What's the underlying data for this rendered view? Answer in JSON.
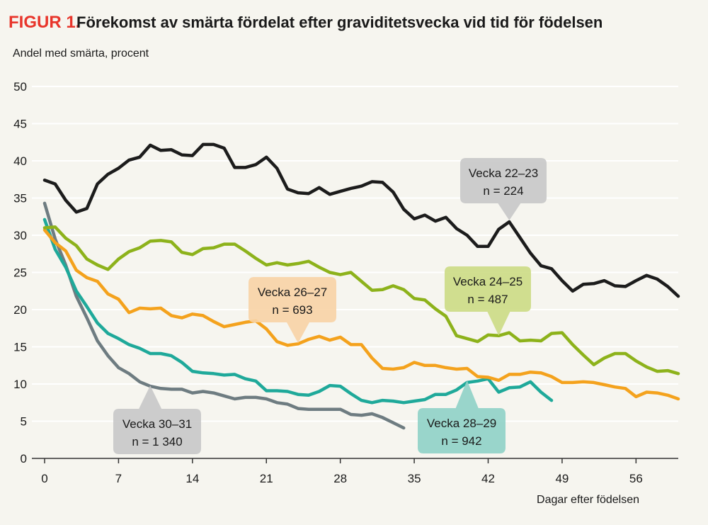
{
  "header": {
    "figure_label": "FIGUR 1.",
    "title": "Förekomst av smärta fördelat efter graviditetsvecka vid tid för födelsen"
  },
  "colors": {
    "background": "#f6f5ef",
    "grid": "#ffffff",
    "axis": "#333333",
    "figure_label": "#e8352b"
  },
  "chart_data": {
    "type": "line",
    "ylabel": "Andel med smärta, procent",
    "xlabel": "Dagar efter födelsen",
    "xlim": [
      0,
      60
    ],
    "ylim": [
      0,
      50
    ],
    "xticks": [
      0,
      7,
      14,
      21,
      28,
      35,
      42,
      49,
      56
    ],
    "yticks": [
      0,
      5,
      10,
      15,
      20,
      25,
      30,
      35,
      40,
      45,
      50
    ],
    "grid": "horizontal",
    "series": [
      {
        "name": "Vecka 22–23",
        "n_label": "n = 224",
        "color": "#1c1c1c",
        "callout_fill": "#c8c8c8",
        "callout_anchor": [
          44,
          32
        ],
        "x": [
          0,
          1,
          2,
          3,
          4,
          5,
          6,
          7,
          8,
          9,
          10,
          11,
          12,
          13,
          14,
          15,
          16,
          17,
          18,
          19,
          20,
          21,
          22,
          23,
          24,
          25,
          26,
          27,
          28,
          29,
          30,
          31,
          32,
          33,
          34,
          35,
          36,
          37,
          38,
          39,
          40,
          41,
          42,
          43,
          44,
          45,
          46,
          47,
          48,
          49,
          50,
          51,
          52,
          53,
          54,
          55,
          56,
          57,
          58,
          59,
          60
        ],
        "values": [
          37.4,
          36.9,
          34.7,
          33.1,
          33.6,
          36.9,
          38.2,
          39.0,
          40.1,
          40.5,
          42.1,
          41.4,
          41.5,
          40.8,
          40.7,
          42.2,
          42.2,
          41.7,
          39.1,
          39.1,
          39.5,
          40.5,
          39.0,
          36.2,
          35.7,
          35.6,
          36.4,
          35.5,
          35.9,
          36.3,
          36.6,
          37.2,
          37.1,
          35.8,
          33.5,
          32.2,
          32.7,
          31.9,
          32.4,
          30.9,
          30.0,
          28.5,
          28.5,
          30.8,
          31.8,
          29.7,
          27.6,
          25.9,
          25.5,
          23.9,
          22.5,
          23.4,
          23.5,
          23.9,
          23.2,
          23.1,
          23.9,
          24.6,
          24.1,
          23.1,
          21.8
        ]
      },
      {
        "name": "Vecka 24–25",
        "n_label": "n = 487",
        "color": "#8db21b",
        "callout_fill": "#ccdc84",
        "callout_anchor": [
          43,
          16.5
        ],
        "x": [
          0,
          1,
          2,
          3,
          4,
          5,
          6,
          7,
          8,
          9,
          10,
          11,
          12,
          13,
          14,
          15,
          16,
          17,
          18,
          19,
          20,
          21,
          22,
          23,
          24,
          25,
          26,
          27,
          28,
          29,
          30,
          31,
          32,
          33,
          34,
          35,
          36,
          37,
          38,
          39,
          40,
          41,
          42,
          43,
          44,
          45,
          46,
          47,
          48,
          49,
          50,
          51,
          52,
          53,
          54,
          55,
          56,
          57,
          58,
          59,
          60
        ],
        "values": [
          31.0,
          31.1,
          29.6,
          28.6,
          26.8,
          26.0,
          25.4,
          26.8,
          27.8,
          28.3,
          29.2,
          29.3,
          29.1,
          27.7,
          27.4,
          28.2,
          28.3,
          28.8,
          28.8,
          27.9,
          26.9,
          26.0,
          26.3,
          26.0,
          26.2,
          26.5,
          25.7,
          25.0,
          24.7,
          25.0,
          23.8,
          22.6,
          22.7,
          23.2,
          22.7,
          21.5,
          21.3,
          20.1,
          19.1,
          16.5,
          16.1,
          15.7,
          16.6,
          16.5,
          16.9,
          15.8,
          15.9,
          15.8,
          16.8,
          16.9,
          15.3,
          13.9,
          12.6,
          13.5,
          14.1,
          14.1,
          13.1,
          12.3,
          11.7,
          11.8,
          11.4
        ]
      },
      {
        "name": "Vecka 26–27",
        "n_label": "n = 693",
        "color": "#f4a21d",
        "callout_fill": "#f8d3a5",
        "callout_anchor": [
          24,
          15.5
        ],
        "x": [
          0,
          1,
          2,
          3,
          4,
          5,
          6,
          7,
          8,
          9,
          10,
          11,
          12,
          13,
          14,
          15,
          16,
          17,
          18,
          19,
          20,
          21,
          22,
          23,
          24,
          25,
          26,
          27,
          28,
          29,
          30,
          31,
          32,
          33,
          34,
          35,
          36,
          37,
          38,
          39,
          40,
          41,
          42,
          43,
          44,
          45,
          46,
          47,
          48,
          49,
          50,
          51,
          52,
          53,
          54,
          55,
          56,
          57,
          58,
          59,
          60
        ],
        "values": [
          30.7,
          29.0,
          27.9,
          25.3,
          24.3,
          23.8,
          22.1,
          21.4,
          19.6,
          20.2,
          20.1,
          20.2,
          19.2,
          18.9,
          19.4,
          19.2,
          18.4,
          17.7,
          18.0,
          18.3,
          18.5,
          17.4,
          15.7,
          15.2,
          15.4,
          16.0,
          16.4,
          15.9,
          16.3,
          15.3,
          15.3,
          13.5,
          12.1,
          12.0,
          12.2,
          12.9,
          12.5,
          12.5,
          12.2,
          12.0,
          12.1,
          11.0,
          10.9,
          10.5,
          11.3,
          11.3,
          11.6,
          11.5,
          11.0,
          10.2,
          10.2,
          10.3,
          10.2,
          9.9,
          9.6,
          9.4,
          8.3,
          8.9,
          8.8,
          8.5,
          8.0
        ]
      },
      {
        "name": "Vecka 28–29",
        "n_label": "n = 942",
        "color": "#1fa99a",
        "callout_fill": "#8fd2c6",
        "callout_anchor": [
          40,
          10.5
        ],
        "x": [
          0,
          1,
          2,
          3,
          4,
          5,
          6,
          7,
          8,
          9,
          10,
          11,
          12,
          13,
          14,
          15,
          16,
          17,
          18,
          19,
          20,
          21,
          22,
          23,
          24,
          25,
          26,
          27,
          28,
          29,
          30,
          31,
          32,
          33,
          34,
          35,
          36,
          37,
          38,
          39,
          40,
          41,
          42,
          43,
          44,
          45,
          46,
          47,
          48
        ],
        "values": [
          32.1,
          28.1,
          25.7,
          22.5,
          20.4,
          18.2,
          16.8,
          16.1,
          15.3,
          14.8,
          14.1,
          14.1,
          13.8,
          12.9,
          11.7,
          11.5,
          11.4,
          11.2,
          11.3,
          10.7,
          10.4,
          9.1,
          9.1,
          9.0,
          8.6,
          8.5,
          9.0,
          9.8,
          9.7,
          8.7,
          7.8,
          7.5,
          7.8,
          7.7,
          7.5,
          7.7,
          7.9,
          8.6,
          8.6,
          9.2,
          10.2,
          10.4,
          10.7,
          8.9,
          9.5,
          9.6,
          10.3,
          8.9,
          7.8
        ]
      },
      {
        "name": "Vecka 30–31",
        "n_label": "n = 1 340",
        "color": "#6e7c81",
        "callout_fill": "#c8c8c8",
        "callout_anchor": [
          10,
          9.8
        ],
        "x": [
          0,
          1,
          2,
          3,
          4,
          5,
          6,
          7,
          8,
          9,
          10,
          11,
          12,
          13,
          14,
          15,
          16,
          17,
          18,
          19,
          20,
          21,
          22,
          23,
          24,
          25,
          26,
          27,
          28,
          29,
          30,
          31,
          32,
          33,
          34
        ],
        "values": [
          34.3,
          29.5,
          26.0,
          21.8,
          18.9,
          15.8,
          13.8,
          12.2,
          11.4,
          10.3,
          9.7,
          9.4,
          9.3,
          9.3,
          8.8,
          9.0,
          8.8,
          8.4,
          8.0,
          8.2,
          8.2,
          8.0,
          7.5,
          7.3,
          6.7,
          6.6,
          6.6,
          6.6,
          6.6,
          5.9,
          5.8,
          6.0,
          5.5,
          4.8,
          4.1
        ]
      }
    ]
  }
}
